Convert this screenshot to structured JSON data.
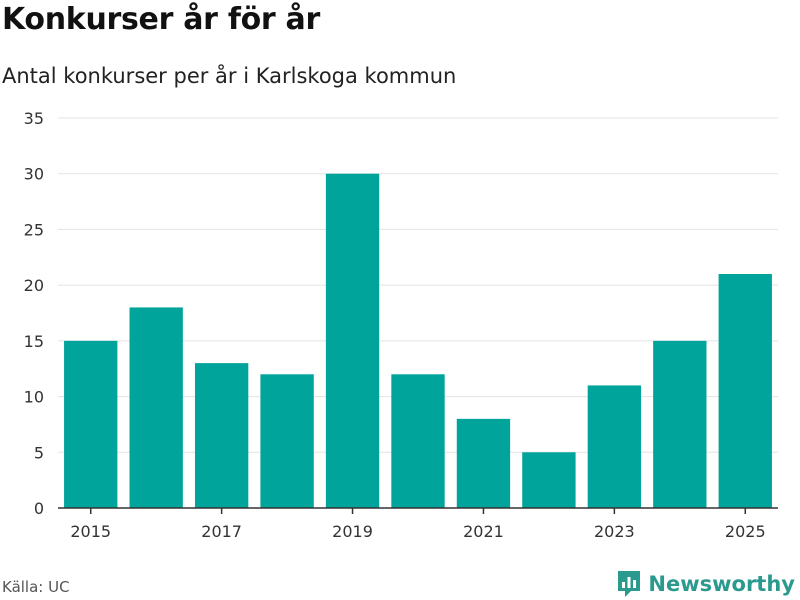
{
  "header": {
    "title": "Konkurser år för år",
    "subtitle": "Antal konkurser per år i Karlskoga kommun"
  },
  "footer": {
    "source": "Källa: UC",
    "brand": "Newsworthy",
    "brand_icon": "newsworthy-logo-icon"
  },
  "colors": {
    "bar": "#00a49a",
    "gridline": "#e3e3e3",
    "axis": "#333333",
    "brand": "#2b9a8e"
  },
  "chart_data": {
    "type": "bar",
    "title": "Konkurser år för år",
    "subtitle": "Antal konkurser per år i Karlskoga kommun",
    "xlabel": "",
    "ylabel": "",
    "categories": [
      2015,
      2016,
      2017,
      2018,
      2019,
      2020,
      2021,
      2022,
      2023,
      2024,
      2025
    ],
    "x_tick_labels": [
      "2015",
      "2017",
      "2019",
      "2021",
      "2023",
      "2025"
    ],
    "values": [
      15,
      18,
      13,
      12,
      30,
      12,
      8,
      5,
      11,
      15,
      21
    ],
    "ylim": [
      0,
      35
    ],
    "y_ticks": [
      0,
      5,
      10,
      15,
      20,
      25,
      30,
      35
    ],
    "grid": true,
    "legend": "none"
  }
}
